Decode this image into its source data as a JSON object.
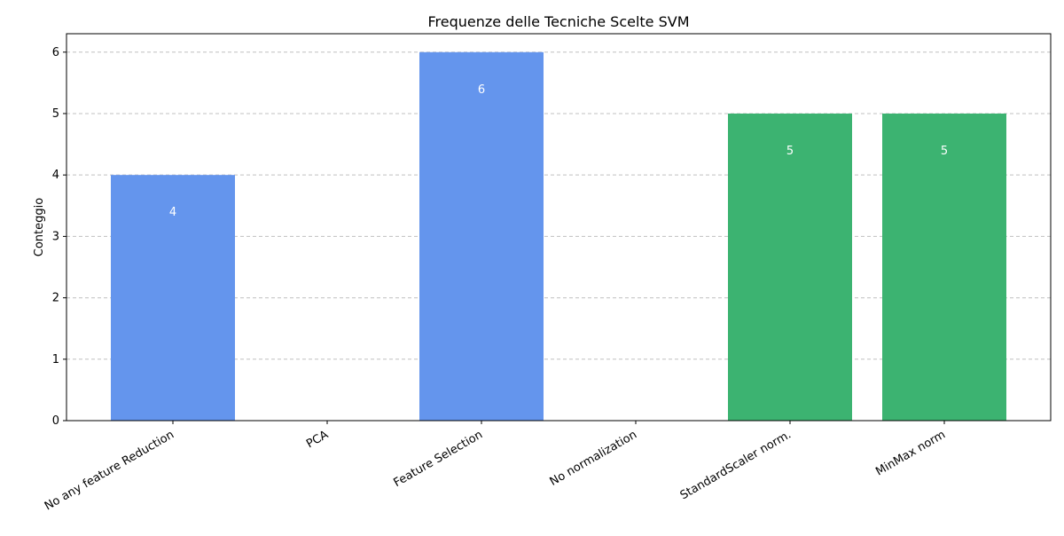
{
  "chart_data": {
    "type": "bar",
    "title": "Frequenze delle Tecniche Scelte SVM",
    "xlabel": "",
    "ylabel": "Conteggio",
    "categories": [
      "No any feature Reduction",
      "PCA",
      "Feature Selection",
      "No normalization",
      "StandardScaler norm.",
      "MinMax norm"
    ],
    "values": [
      4,
      0,
      6,
      0,
      5,
      5
    ],
    "bar_colors": [
      "#6495ED",
      "#6495ED",
      "#6495ED",
      "#3CB371",
      "#3CB371",
      "#3CB371"
    ],
    "data_labels": [
      "4",
      "",
      "6",
      "",
      "5",
      "5"
    ],
    "yticks": [
      0,
      1,
      2,
      3,
      4,
      5,
      6
    ],
    "ylim": [
      0,
      6.3
    ],
    "grid": "y-dashed",
    "label_color": "#ffffff",
    "grid_color": "#c0c0c0",
    "axis_color": "#000000"
  }
}
